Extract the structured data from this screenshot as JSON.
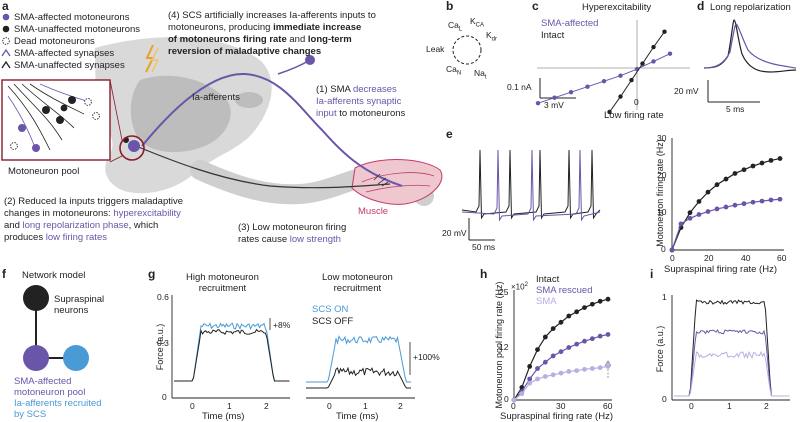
{
  "panel_a": {
    "label": "a",
    "legend": [
      {
        "text": "SMA-affected motoneurons",
        "color": "#6a55a8"
      },
      {
        "text": "SMA-unaffected motoneurons",
        "color": "#222222"
      },
      {
        "text": "Dead motoneurons",
        "color": "#222222"
      },
      {
        "text": "SMA-affected synapses",
        "color": "#6a55a8"
      },
      {
        "text": "SMA-unaffected synapses",
        "color": "#222222"
      }
    ],
    "note4": [
      "(4) SCS artificially increases Ia-afferents inputs to",
      "motoneurons, producing ",
      "immediate increase",
      "of motoneurons firing rate",
      " and ",
      "long-term",
      "reversion of maladaptive changes"
    ],
    "ia_label": "Ia-afferents",
    "note1": [
      "(1) SMA ",
      "decreases",
      "Ia-afferents synaptic",
      "input",
      " to motoneurons"
    ],
    "pool_label": "Motoneuron pool",
    "note2": [
      "(2) Reduced Ia inputs triggers maladaptive",
      "changes in motoneurons: ",
      "hyperexcitability",
      "and ",
      "long repolarization phase",
      ", which",
      "produces ",
      "low firing rates"
    ],
    "muscle_label": "Muscle",
    "note3": [
      "(3) Low motoneuron firing",
      "rates cause ",
      "low strength"
    ]
  },
  "panel_b": {
    "label": "b",
    "channels": [
      "Ca",
      "K",
      "K",
      "Leak",
      "Ca",
      "Na"
    ],
    "subs": [
      "L",
      "CA",
      "dr",
      "",
      "N",
      "t"
    ]
  },
  "panel_c": {
    "label": "c",
    "title": "Hyperexcitability",
    "legend": [
      "SMA-affected",
      "Intact"
    ],
    "scale_y": "0.1 nA",
    "scale_x": "3 mV",
    "zero": "0",
    "xlabel": "Low firing rate"
  },
  "panel_d": {
    "label": "d",
    "title": "Long repolarization",
    "scale_y": "20 mV",
    "scale_x": "5 ms"
  },
  "panel_e": {
    "label": "e",
    "scale_y": "20 mV",
    "scale_x": "50 ms",
    "ylabel": "Motoneuron firing rate (Hz)",
    "xlabel": "Supraspinal firing rate (Hz)",
    "yticks": [
      "0",
      "10",
      "20",
      "30"
    ],
    "xticks": [
      "0",
      "20",
      "40",
      "60"
    ]
  },
  "panel_f": {
    "label": "f",
    "title": "Network model",
    "supra": [
      "Supraspinal",
      "neurons"
    ],
    "pool": [
      "SMA-affected",
      "motoneuron pool"
    ],
    "ia": [
      "Ia-afferents recruited",
      "by SCS"
    ]
  },
  "panel_g": {
    "label": "g",
    "title_high": [
      "High motoneuron",
      "recruitment"
    ],
    "title_low": [
      "Low motoneuron",
      "recruitment"
    ],
    "ylabel": "Force (a.u.)",
    "yticks": [
      "0",
      "0.3",
      "0.6"
    ],
    "xticks": [
      "0",
      "1",
      "2"
    ],
    "xlabel": "Time (ms)",
    "legend_on": "SCS ON",
    "legend_off": "SCS OFF",
    "pct1": "+8%",
    "pct2": "+100%"
  },
  "panel_h": {
    "label": "h",
    "legend": [
      "Intact",
      "SMA rescued",
      "SMA"
    ],
    "ylabel": "Motoneuron pool firing rate (Hz)",
    "exp": "×10",
    "exp_sup": "2",
    "yticks": [
      "0",
      "12",
      "25"
    ],
    "xticks": [
      "0",
      "30",
      "60"
    ],
    "xlabel": "Supraspinal firing rate (Hz)"
  },
  "panel_i": {
    "label": "i",
    "ylabel": "Force (a.u.)",
    "yticks": [
      "0",
      "1"
    ],
    "xticks": [
      "0",
      "1",
      "2"
    ]
  },
  "chart_data": [
    {
      "type": "line",
      "title": "Hyperexcitability",
      "xlabel": "Low firing rate",
      "series": [
        {
          "name": "SMA-affected",
          "x": [
            -9,
            -7.5,
            -6,
            -4.5,
            -3,
            -1.5,
            0,
            1.5,
            3
          ],
          "y": [
            -3.2,
            -2.7,
            -2.2,
            -1.7,
            -1.2,
            -0.7,
            -0.1,
            0.6,
            1.3
          ]
        },
        {
          "name": "Intact",
          "x": [
            -2.5,
            -1.5,
            -0.5,
            0.5,
            1.5,
            2.5
          ],
          "y": [
            -4.0,
            -2.6,
            -1.1,
            0.4,
            1.9,
            3.3
          ]
        }
      ]
    },
    {
      "type": "line",
      "xlabel": "Supraspinal firing rate (Hz)",
      "ylabel": "Motoneuron firing rate (Hz)",
      "ylim": [
        0,
        30
      ],
      "xlim": [
        0,
        60
      ],
      "series": [
        {
          "name": "Intact",
          "x": [
            0,
            5,
            10,
            15,
            20,
            25,
            30,
            35,
            40,
            45,
            50,
            55,
            60
          ],
          "y": [
            0,
            6,
            10,
            13,
            15.5,
            17.5,
            19,
            20.5,
            21.5,
            22.5,
            23.3,
            24,
            24.5
          ]
        },
        {
          "name": "SMA-affected",
          "x": [
            0,
            5,
            10,
            15,
            20,
            25,
            30,
            35,
            40,
            45,
            50,
            55,
            60
          ],
          "y": [
            0,
            7,
            8.5,
            9.5,
            10.3,
            11,
            11.5,
            12,
            12.4,
            12.8,
            13.1,
            13.4,
            13.6
          ]
        }
      ]
    },
    {
      "type": "line",
      "xlabel": "Supraspinal firing rate (Hz)",
      "ylabel": "Motoneuron pool firing rate (Hz)",
      "ylim": [
        0,
        25
      ],
      "xlim": [
        0,
        60
      ],
      "series": [
        {
          "name": "Intact",
          "x": [
            0,
            5,
            10,
            15,
            20,
            25,
            30,
            35,
            40,
            45,
            50,
            55,
            60
          ],
          "y": [
            0,
            3,
            8,
            12,
            15,
            17,
            18.5,
            20,
            21,
            22,
            22.8,
            23.5,
            24
          ]
        },
        {
          "name": "SMA rescued",
          "x": [
            0,
            5,
            10,
            15,
            20,
            25,
            30,
            35,
            40,
            45,
            50,
            55,
            60
          ],
          "y": [
            0,
            2,
            5,
            7.5,
            9,
            10.5,
            11.5,
            12.5,
            13.3,
            14,
            14.6,
            15.2,
            15.6
          ]
        },
        {
          "name": "SMA",
          "x": [
            0,
            5,
            10,
            15,
            20,
            25,
            30,
            35,
            40,
            45,
            50,
            55,
            60
          ],
          "y": [
            0,
            1.5,
            4,
            5,
            5.6,
            6,
            6.4,
            6.8,
            7,
            7.3,
            7.5,
            7.7,
            8
          ]
        }
      ]
    }
  ]
}
